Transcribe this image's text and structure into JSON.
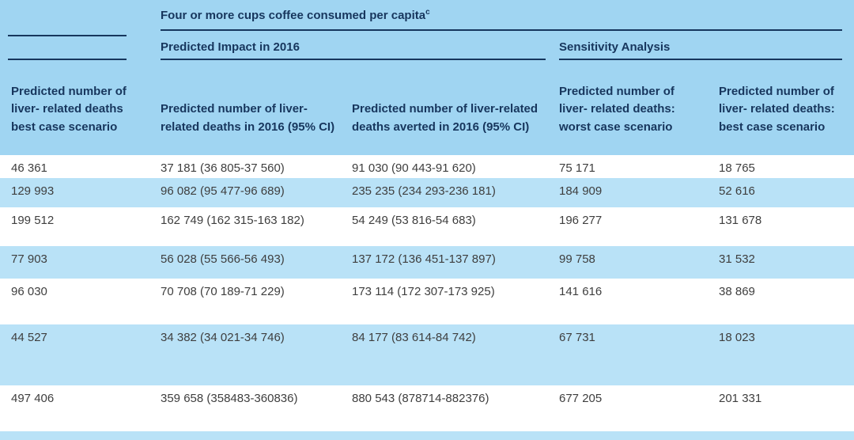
{
  "colors": {
    "header_bg": "#a0d5f2",
    "stripe_bg": "#b9e2f7",
    "rule": "#16365d",
    "header_text": "#17365d",
    "body_text": "#3e3e3e",
    "row_white": "#ffffff"
  },
  "chart_data": {
    "type": "table",
    "spanner": "Four or more cups coffee consumed per capita",
    "spanner_superscript": "c",
    "group_headers": [
      "Predicted Impact in 2016",
      "Sensitivity Analysis"
    ],
    "columns": [
      "Predicted number of liver- related deaths best case scenario",
      "Predicted number of liver-related deaths in 2016 (95% CI)",
      "Predicted number of liver-related deaths averted in 2016 (95% CI)",
      "Predicted number of liver- related deaths: worst case scenario",
      "Predicted number of liver- related deaths: best case scenario"
    ],
    "rows": [
      [
        "46 361",
        "37 181 (36 805-37 560)",
        "91 030 (90 443-91 620)",
        "75 171",
        "18 765"
      ],
      [
        "129 993",
        "96 082 (95 477-96 689)",
        "235 235 (234 293-236 181)",
        "184 909",
        "52 616"
      ],
      [
        "199 512",
        "162 749 (162 315-163 182)",
        "54 249 (53 816-54 683)",
        "196 277",
        "131 678"
      ],
      [
        "77 903",
        "56 028 (55 566-56 493)",
        "137 172 (136 451-137 897)",
        "99 758",
        "31 532"
      ],
      [
        "96 030",
        "70 708 (70 189-71 229)",
        "173 114 (172 307-173 925)",
        "141 616",
        "38 869"
      ],
      [
        "44 527",
        "34 382 (34 021-34 746)",
        "84 177 (83 614-84 742)",
        "67 731",
        "18 023"
      ],
      [
        "497 406",
        "359 658 (358483-360836)",
        "880 543 (878714-882376)",
        "677 205",
        "201 331"
      ]
    ]
  }
}
